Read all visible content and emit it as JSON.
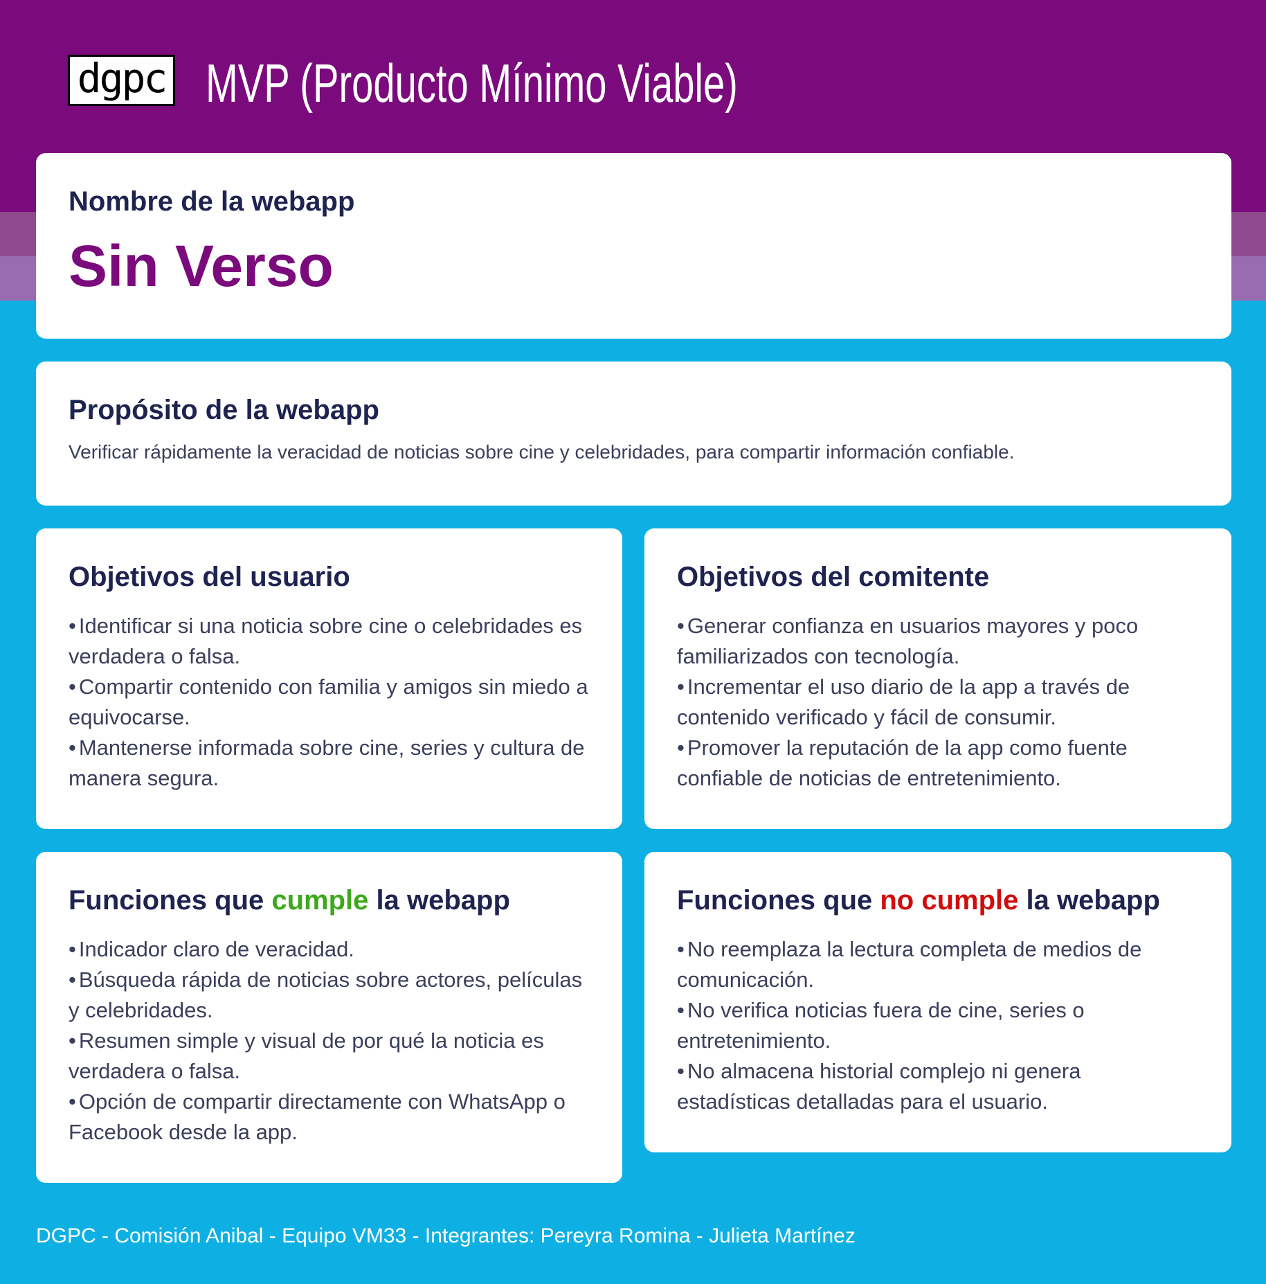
{
  "header": {
    "logo": "dgpc",
    "title": "MVP (Producto Mínimo Viable)"
  },
  "name_card": {
    "heading": "Nombre de la webapp",
    "name": "Sin Verso"
  },
  "purpose_card": {
    "heading": "Propósito de la webapp",
    "text": "Verificar rápidamente la veracidad de noticias sobre cine y celebridades, para compartir información confiable."
  },
  "user_goals": {
    "heading": "Objetivos del usuario",
    "items": [
      "Identificar si una noticia sobre cine o celebridades es verdadera o falsa.",
      "Compartir contenido con familia y amigos sin miedo a equivocarse.",
      "Mantenerse informada sobre cine, series y cultura de manera segura."
    ]
  },
  "client_goals": {
    "heading": "Objetivos del comitente",
    "items": [
      "Generar confianza en usuarios mayores y poco familiarizados con tecnología.",
      "Incrementar el uso diario de la app a través de contenido verificado y fácil de consumir.",
      "Promover la reputación de la app como fuente confiable de noticias de entretenimiento."
    ]
  },
  "functions_yes": {
    "heading_pre": "Funciones que ",
    "heading_hl": "cumple",
    "heading_post": " la webapp",
    "highlight_color": "#3ea81c",
    "items": [
      "Indicador claro de veracidad.",
      "Búsqueda rápida de noticias sobre actores, películas y celebridades.",
      "Resumen simple y visual de por qué la noticia es verdadera o falsa.",
      "Opción de compartir directamente con WhatsApp o Facebook desde la app."
    ]
  },
  "functions_no": {
    "heading_pre": "Funciones que ",
    "heading_hl": "no cumple",
    "heading_post": " la webapp",
    "highlight_color": "#d00c0c",
    "items": [
      "No reemplaza la lectura completa de medios de comunicación.",
      "No verifica noticias fuera de cine, series o entretenimiento.",
      "No almacena historial complejo ni genera estadísticas detalladas para el usuario."
    ]
  },
  "footer": "DGPC - Comisión Anibal - Equipo VM33 - Integrantes: Pereyra Romina - Julieta Martínez"
}
